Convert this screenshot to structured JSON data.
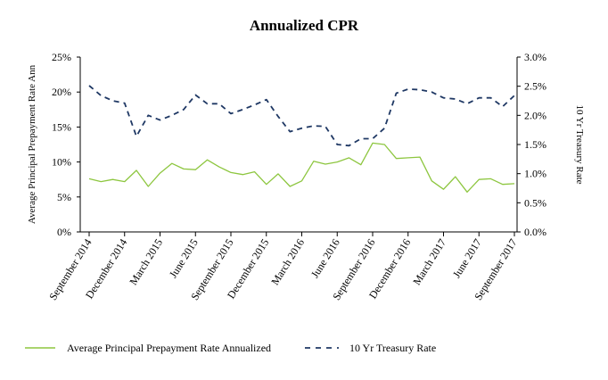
{
  "chart_data": {
    "type": "line",
    "title": "Annualized CPR",
    "ylabel_left": "Average Principal Prepayment Rate Ann",
    "ylabel_right": "10 Yr Treasury Rate",
    "ylim_left": [
      0,
      25
    ],
    "ylim_right": [
      0,
      3.0
    ],
    "yticks_left": [
      "0%",
      "5%",
      "10%",
      "15%",
      "20%",
      "25%"
    ],
    "yticks_right": [
      "0.0%",
      "0.5%",
      "1.0%",
      "1.5%",
      "2.0%",
      "2.5%",
      "3.0%"
    ],
    "x_ticks": [
      {
        "label": "September 2014",
        "index": 0
      },
      {
        "label": "December 2014",
        "index": 3
      },
      {
        "label": "March 2015",
        "index": 6
      },
      {
        "label": "June 2015",
        "index": 9
      },
      {
        "label": "September 2015",
        "index": 12
      },
      {
        "label": "December 2015",
        "index": 15
      },
      {
        "label": "March 2016",
        "index": 18
      },
      {
        "label": "June 2016",
        "index": 21
      },
      {
        "label": "September 2016",
        "index": 24
      },
      {
        "label": "December 2016",
        "index": 27
      },
      {
        "label": "March 2017",
        "index": 30
      },
      {
        "label": "June 2017",
        "index": 33
      },
      {
        "label": "September 2017",
        "index": 36
      }
    ],
    "series": [
      {
        "name": "Average Principal Prepayment Rate Annualized",
        "axis": "left",
        "color": "#8dc63f",
        "style": "solid",
        "values": [
          7.6,
          7.2,
          7.5,
          7.2,
          8.8,
          6.5,
          8.4,
          9.8,
          9.0,
          8.9,
          10.3,
          9.3,
          8.5,
          8.2,
          8.6,
          6.8,
          8.3,
          6.5,
          7.3,
          10.1,
          9.7,
          10.0,
          10.6,
          9.6,
          12.7,
          12.5,
          10.5,
          10.6,
          10.7,
          7.3,
          6.1,
          7.9,
          5.7,
          7.5,
          7.6,
          6.8,
          6.9
        ]
      },
      {
        "name": "10 Yr Treasury Rate",
        "axis": "right",
        "color": "#1f3864",
        "style": "dashed",
        "values": [
          2.51,
          2.34,
          2.25,
          2.21,
          1.64,
          2.0,
          1.92,
          2.0,
          2.1,
          2.35,
          2.2,
          2.2,
          2.03,
          2.1,
          2.18,
          2.27,
          1.98,
          1.72,
          1.78,
          1.82,
          1.81,
          1.5,
          1.48,
          1.6,
          1.6,
          1.78,
          2.38,
          2.45,
          2.44,
          2.4,
          2.3,
          2.28,
          2.2,
          2.3,
          2.3,
          2.15,
          2.34
        ]
      }
    ],
    "legend_position": "bottom"
  }
}
